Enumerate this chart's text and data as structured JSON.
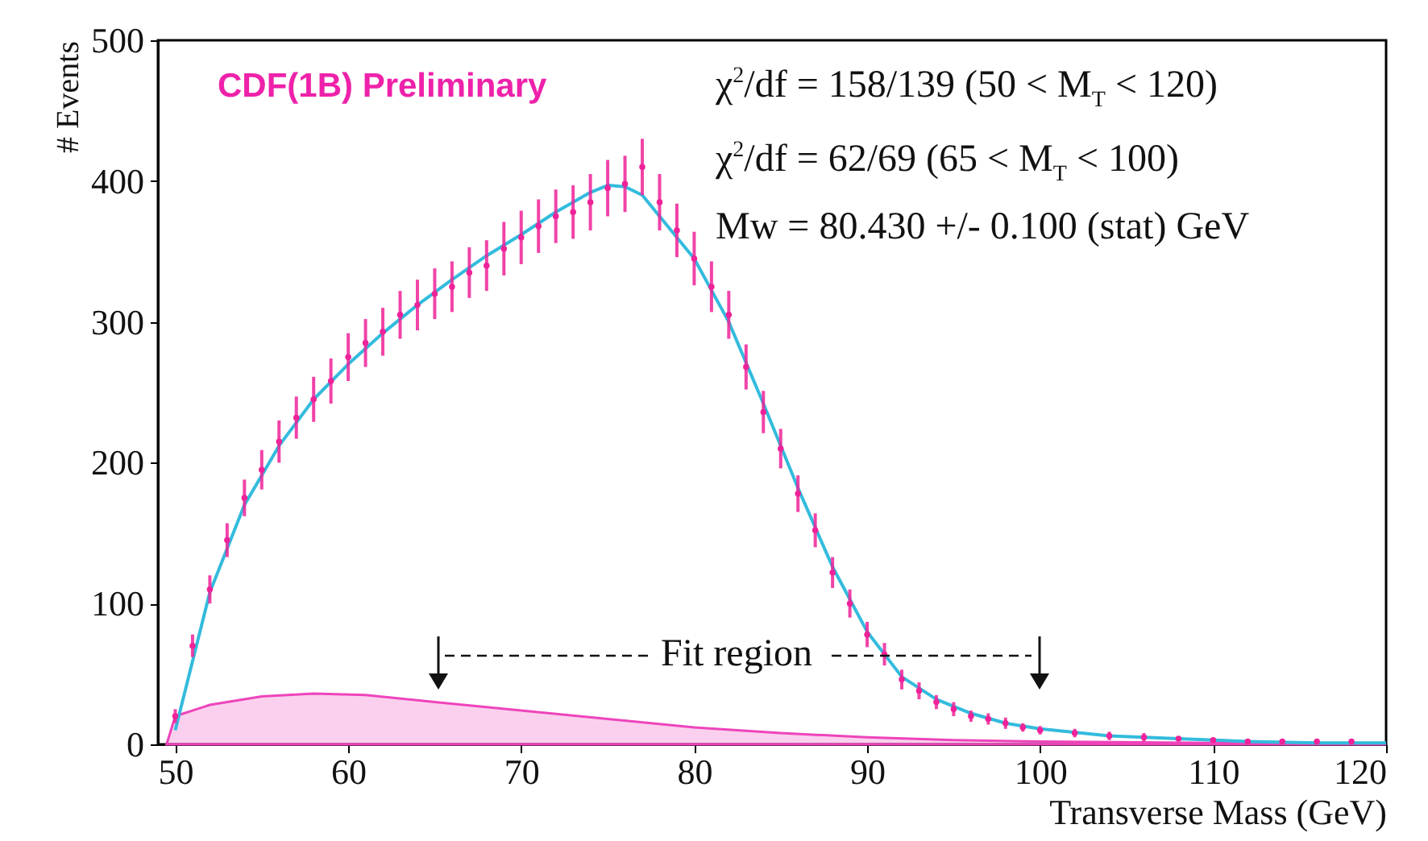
{
  "chart_data": {
    "type": "scatter",
    "xlabel": "Transverse Mass (GeV)",
    "ylabel": "# Events",
    "xlim": [
      49,
      120
    ],
    "xticks": [
      50,
      60,
      70,
      80,
      90,
      100,
      110,
      120
    ],
    "ylim": [
      0,
      500
    ],
    "yticks": [
      0,
      100,
      200,
      300,
      400,
      500
    ],
    "series": [
      {
        "type": "area",
        "color": "#ee44bb",
        "x": [
          49.5,
          50,
          52,
          55,
          58,
          61,
          65,
          70,
          75,
          80,
          85,
          90,
          95,
          100,
          110,
          120
        ],
        "values": [
          0,
          20,
          28,
          34,
          36,
          35,
          30,
          24,
          18,
          12,
          8,
          5,
          3,
          2,
          1,
          0
        ]
      },
      {
        "type": "line",
        "color": "#33bbdd",
        "x": [
          50,
          52,
          54,
          56,
          58,
          60,
          62,
          64,
          66,
          68,
          70,
          72,
          74,
          75,
          76,
          77,
          78,
          80,
          82,
          84,
          86,
          88,
          90,
          92,
          94,
          96,
          98,
          100,
          104,
          108,
          112,
          116,
          120
        ],
        "values": [
          10,
          108,
          170,
          212,
          245,
          270,
          292,
          312,
          330,
          347,
          362,
          378,
          392,
          397,
          396,
          390,
          375,
          345,
          300,
          242,
          182,
          126,
          80,
          48,
          32,
          22,
          15,
          11,
          6,
          4,
          2,
          1,
          1
        ]
      },
      {
        "color": "#ee2299",
        "marker": "circle",
        "x": [
          50,
          51,
          52,
          53,
          54,
          55,
          56,
          57,
          58,
          59,
          60,
          61,
          62,
          63,
          64,
          65,
          66,
          67,
          68,
          69,
          70,
          71,
          72,
          73,
          74,
          75,
          76,
          77,
          78,
          79,
          80,
          81,
          82,
          83,
          84,
          85,
          86,
          87,
          88,
          89,
          90,
          91,
          92,
          93,
          94,
          95,
          96,
          97,
          98,
          99,
          100,
          102,
          104,
          106,
          108,
          110,
          112,
          114,
          116,
          118
        ],
        "values": [
          20,
          70,
          110,
          145,
          175,
          195,
          215,
          232,
          245,
          258,
          275,
          285,
          293,
          305,
          312,
          320,
          325,
          335,
          340,
          352,
          360,
          368,
          375,
          378,
          385,
          395,
          398,
          410,
          385,
          365,
          345,
          325,
          305,
          268,
          236,
          210,
          178,
          152,
          122,
          100,
          78,
          64,
          46,
          38,
          30,
          25,
          20,
          18,
          15,
          12,
          10,
          8,
          6,
          5,
          4,
          3,
          2,
          2,
          2,
          2
        ],
        "errors": [
          5,
          8,
          10,
          12,
          13,
          14,
          15,
          15,
          16,
          16,
          17,
          17,
          17,
          17,
          18,
          18,
          18,
          18,
          18,
          19,
          19,
          19,
          19,
          19,
          20,
          20,
          20,
          20,
          20,
          19,
          19,
          18,
          17,
          16,
          15,
          14,
          13,
          12,
          11,
          10,
          9,
          8,
          7,
          6,
          5,
          5,
          4,
          4,
          4,
          3,
          3,
          3,
          3,
          3,
          null,
          null,
          null,
          null,
          null,
          null
        ]
      }
    ],
    "annotations": [
      "CDF(1B) Preliminary",
      "χ$^{2}$/df = 158/139 (50 < M$_{T}$ < 120)",
      "χ$^{2}$/df = 62/69 (65 < M$_{T}$ < 100)",
      "Mw = 80.430 +/- 0.100 (stat) GeV",
      "Fit region"
    ]
  }
}
